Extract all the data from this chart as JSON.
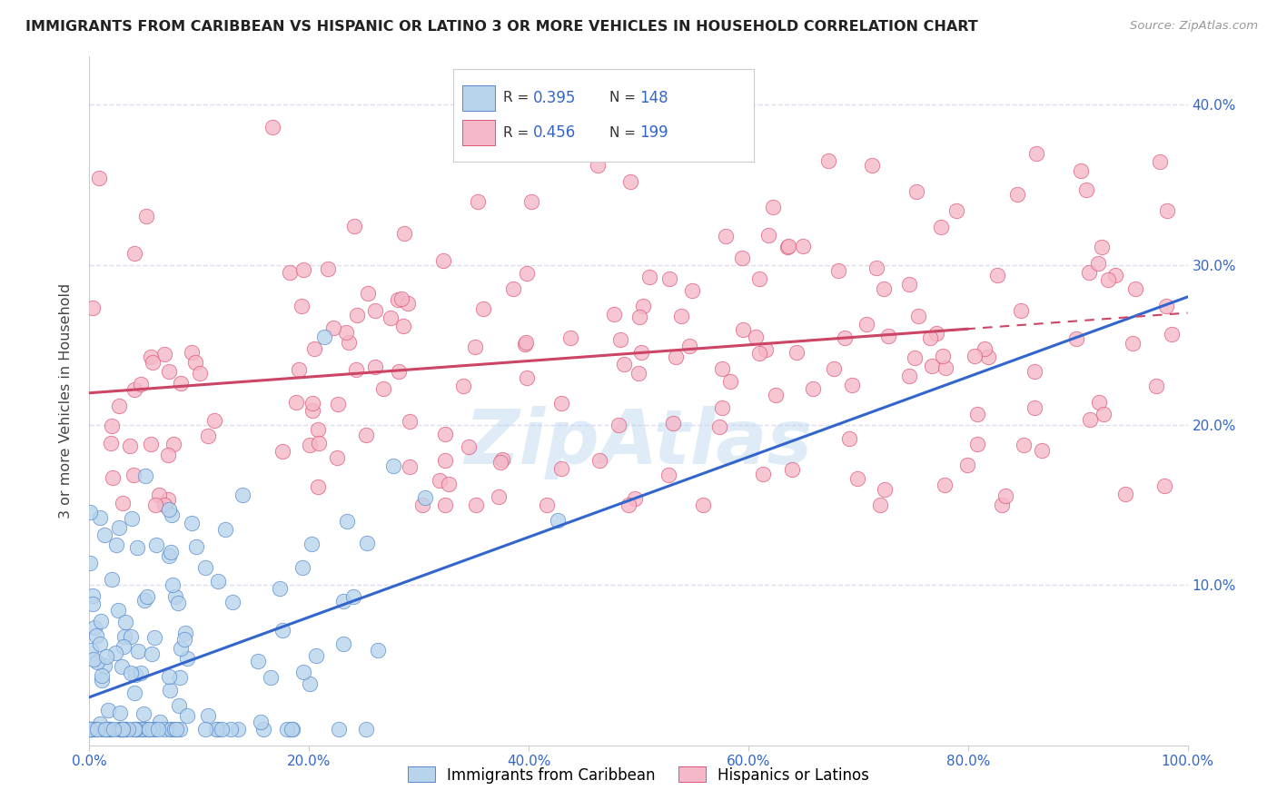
{
  "title": "IMMIGRANTS FROM CARIBBEAN VS HISPANIC OR LATINO 3 OR MORE VEHICLES IN HOUSEHOLD CORRELATION CHART",
  "source": "Source: ZipAtlas.com",
  "ylabel": "3 or more Vehicles in Household",
  "xlim": [
    0,
    100
  ],
  "ylim": [
    0,
    43
  ],
  "xticks": [
    0,
    20,
    40,
    60,
    80,
    100
  ],
  "yticks": [
    10,
    20,
    30,
    40
  ],
  "blue_R": 0.395,
  "blue_N": 148,
  "pink_R": 0.456,
  "pink_N": 199,
  "blue_color": "#b8d4ec",
  "pink_color": "#f5b8c8",
  "blue_edge_color": "#5588cc",
  "pink_edge_color": "#dd5577",
  "blue_line_color": "#3366cc",
  "pink_line_color": "#cc4466",
  "tick_color": "#3366cc",
  "grid_color": "#ddddee",
  "legend_blue_label": "Immigrants from Caribbean",
  "legend_pink_label": "Hispanics or Latinos",
  "watermark": "ZipAtlas",
  "blue_line_x0": 0,
  "blue_line_y0": 3,
  "blue_line_x1": 100,
  "blue_line_y1": 28,
  "pink_line_x0": 0,
  "pink_line_y0": 22,
  "pink_line_x1": 100,
  "pink_line_y1": 27
}
